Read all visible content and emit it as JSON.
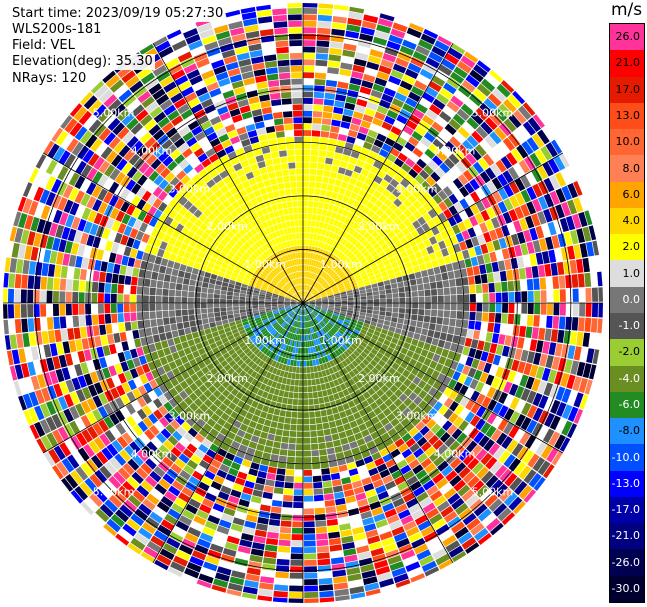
{
  "header": {
    "start_time": "Start time: 2023/09/19 05:27:30",
    "instrument": "WLS200s-181",
    "field": "Field: VEL",
    "elevation": "Elevation(deg): 35.30",
    "nrays": "NRays: 120"
  },
  "colorbar": {
    "units": "m/s",
    "levels": [
      {
        "label": "26.0",
        "color": "#ff3399"
      },
      {
        "label": "21.0",
        "color": "#ff0000"
      },
      {
        "label": "17.0",
        "color": "#e61a00"
      },
      {
        "label": "13.0",
        "color": "#ff4d1a"
      },
      {
        "label": "10.0",
        "color": "#ff6633"
      },
      {
        "label": "8.0",
        "color": "#ff8055"
      },
      {
        "label": "6.0",
        "color": "#ffa500"
      },
      {
        "label": "4.0",
        "color": "#ffd700"
      },
      {
        "label": "2.0",
        "color": "#ffff00"
      },
      {
        "label": "1.0",
        "color": "#dddddd"
      },
      {
        "label": "0.0",
        "color": "#777777"
      },
      {
        "label": "-1.0",
        "color": "#555555"
      },
      {
        "label": "-2.0",
        "color": "#9acd32"
      },
      {
        "label": "-4.0",
        "color": "#6b8e23"
      },
      {
        "label": "-6.0",
        "color": "#228b22"
      },
      {
        "label": "-8.0",
        "color": "#1e90ff"
      },
      {
        "label": "-10.0",
        "color": "#0050ff"
      },
      {
        "label": "-13.0",
        "color": "#0000ff"
      },
      {
        "label": "-17.0",
        "color": "#0000aa"
      },
      {
        "label": "-21.0",
        "color": "#000080"
      },
      {
        "label": "-26.0",
        "color": "#000050"
      },
      {
        "label": "-30.0",
        "color": "#000030"
      }
    ]
  },
  "chart_data": {
    "type": "heatmap",
    "subtype": "radar-ppi",
    "range_rings_km": [
      1.0,
      2.0,
      3.0,
      4.0,
      5.0
    ],
    "ring_labels": [
      "1.00km",
      "2.00km",
      "3.00km",
      "4.00km",
      "5.00km"
    ],
    "spokes_deg": [
      0,
      30,
      60,
      90,
      120,
      150,
      180,
      210,
      240,
      270,
      300,
      330
    ],
    "max_range_km": 5.6,
    "nrays": 120,
    "clean_range_km": 3.1,
    "regions": [
      {
        "range_km": [
          0.0,
          1.0
        ],
        "sector": "upper",
        "value_ms": 5.0
      },
      {
        "range_km": [
          1.0,
          3.1
        ],
        "sector": "upper",
        "value_ms": 2.5
      },
      {
        "range_km": [
          0.0,
          1.2
        ],
        "sector": "lower",
        "value_ms": -6.0
      },
      {
        "range_km": [
          1.2,
          3.1
        ],
        "sector": "lower",
        "value_ms": -2.5
      },
      {
        "range_km": [
          0.0,
          3.1
        ],
        "sector": "sides",
        "value_ms": 0.0
      },
      {
        "range_km": [
          3.1,
          5.6
        ],
        "sector": "all",
        "value_ms": "noise"
      }
    ],
    "legend": "colorbar-right",
    "grid": true
  }
}
